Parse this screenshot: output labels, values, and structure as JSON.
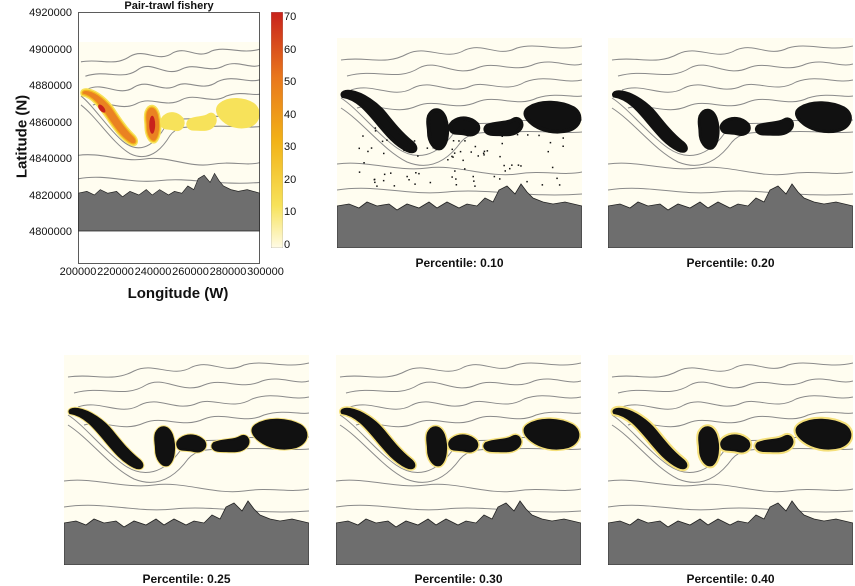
{
  "main_map": {
    "title": "Pair-trawl fishery",
    "ylabel": "Latitude (N)",
    "xlabel": "Longitude (W)",
    "yticks": [
      "4920000",
      "4900000",
      "4880000",
      "4860000",
      "4840000",
      "4820000",
      "4800000"
    ],
    "xticks": [
      "200000",
      "220000",
      "240000",
      "260000",
      "280000",
      "300000"
    ],
    "xlim": [
      200000,
      300000
    ],
    "ylim": [
      4800000,
      4920000
    ],
    "colorbar": {
      "ticks": [
        "70",
        "60",
        "50",
        "40",
        "30",
        "20",
        "10",
        "0"
      ],
      "min": 0,
      "max": 70,
      "colors": [
        "#fffbe6",
        "#f7e25a",
        "#f2b318",
        "#e9781c",
        "#c8221c"
      ]
    }
  },
  "panels": [
    {
      "caption": "Percentile: 0.10"
    },
    {
      "caption": "Percentile: 0.20"
    },
    {
      "caption": "Percentile: 0.25"
    },
    {
      "caption": "Percentile: 0.30"
    },
    {
      "caption": "Percentile: 0.40"
    }
  ],
  "colors": {
    "land": "#6e6e6e",
    "sea": "#fffdf0",
    "contour": "#8a8a8a",
    "selected": "#111111",
    "halo": "#f5e07a"
  }
}
